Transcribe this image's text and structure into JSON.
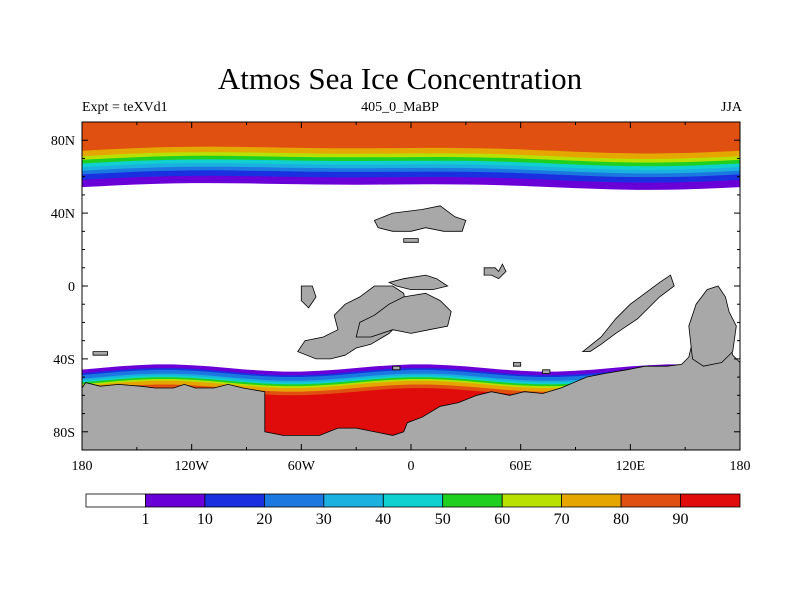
{
  "chart_data": {
    "type": "heatmap",
    "title": "Atmos Sea Ice Concentration",
    "subtitle_left": "Expt = teXVd1",
    "subtitle_center": "405_0_MaBP",
    "subtitle_right": "JJA",
    "projection": "cylindrical equidistant",
    "xlim": [
      -180,
      180
    ],
    "ylim": [
      -90,
      90
    ],
    "x_ticks": [
      {
        "value": -180,
        "label": "180"
      },
      {
        "value": -120,
        "label": "120W"
      },
      {
        "value": -60,
        "label": "60W"
      },
      {
        "value": 0,
        "label": "0"
      },
      {
        "value": 60,
        "label": "60E"
      },
      {
        "value": 120,
        "label": "120E"
      },
      {
        "value": 180,
        "label": "180"
      }
    ],
    "y_ticks": [
      {
        "value": 80,
        "label": "80N"
      },
      {
        "value": 40,
        "label": "40N"
      },
      {
        "value": 0,
        "label": "0"
      },
      {
        "value": -40,
        "label": "40S"
      },
      {
        "value": -80,
        "label": "80S"
      }
    ],
    "levels": [
      1,
      10,
      20,
      30,
      40,
      50,
      60,
      70,
      80,
      90
    ],
    "level_labels": [
      "1",
      "10",
      "20",
      "30",
      "40",
      "50",
      "60",
      "70",
      "80",
      "90"
    ],
    "colors": [
      "#ffffff",
      "#6a00d8",
      "#1a2fe0",
      "#1a78e0",
      "#1ab0e0",
      "#10d0d0",
      "#20d020",
      "#b8e000",
      "#e6a600",
      "#e05010",
      "#e00c0c"
    ],
    "land_color": "#a8a8a8",
    "north_bands": [
      {
        "level": 1,
        "lat_edge": 55
      },
      {
        "level": 10,
        "lat_edge": 59
      },
      {
        "level": 20,
        "lat_edge": 62
      },
      {
        "level": 30,
        "lat_edge": 64
      },
      {
        "level": 40,
        "lat_edge": 66
      },
      {
        "level": 50,
        "lat_edge": 68
      },
      {
        "level": 60,
        "lat_edge": 70
      },
      {
        "level": 70,
        "lat_edge": 72
      },
      {
        "level": 80,
        "lat_edge": 75
      }
    ],
    "south_bands": [
      {
        "level": 1,
        "lat_edge": -45
      },
      {
        "level": 10,
        "lat_edge": -47
      },
      {
        "level": 20,
        "lat_edge": -48
      },
      {
        "level": 30,
        "lat_edge": -50
      },
      {
        "level": 40,
        "lat_edge": -51
      },
      {
        "level": 50,
        "lat_edge": -52
      },
      {
        "level": 60,
        "lat_edge": -53
      },
      {
        "level": 70,
        "lat_edge": -54
      },
      {
        "level": 80,
        "lat_edge": -56
      },
      {
        "level": 90,
        "lat_edge": -58
      }
    ],
    "land_polygons": [
      [
        [
          -180,
          -56
        ],
        [
          -178,
          -53
        ],
        [
          -170,
          -55
        ],
        [
          -160,
          -54
        ],
        [
          -148,
          -55
        ],
        [
          -140,
          -56
        ],
        [
          -130,
          -56
        ],
        [
          -124,
          -54
        ],
        [
          -118,
          -56
        ],
        [
          -108,
          -56
        ],
        [
          -100,
          -54
        ],
        [
          -92,
          -56
        ],
        [
          -86,
          -57
        ],
        [
          -80,
          -58
        ],
        [
          -80,
          -80
        ],
        [
          -70,
          -82
        ],
        [
          -50,
          -82
        ],
        [
          -40,
          -78
        ],
        [
          -30,
          -78
        ],
        [
          -10,
          -82
        ],
        [
          -4,
          -80
        ],
        [
          -2,
          -75
        ],
        [
          6,
          -72
        ],
        [
          16,
          -66
        ],
        [
          26,
          -64
        ],
        [
          36,
          -60
        ],
        [
          44,
          -58
        ],
        [
          54,
          -60
        ],
        [
          62,
          -58
        ],
        [
          72,
          -59
        ],
        [
          82,
          -56
        ],
        [
          96,
          -50
        ],
        [
          106,
          -48
        ],
        [
          118,
          -46
        ],
        [
          128,
          -44
        ],
        [
          140,
          -44
        ],
        [
          148,
          -43
        ],
        [
          152,
          -39
        ],
        [
          156,
          -22
        ],
        [
          166,
          -16
        ],
        [
          170,
          -12
        ],
        [
          174,
          -28
        ],
        [
          176,
          -38
        ],
        [
          180,
          -42
        ],
        [
          180,
          -90
        ],
        [
          -180,
          -90
        ]
      ],
      [
        [
          154,
          -40
        ],
        [
          152,
          -22
        ],
        [
          156,
          -10
        ],
        [
          162,
          -2
        ],
        [
          168,
          0
        ],
        [
          172,
          -6
        ],
        [
          174,
          -14
        ],
        [
          178,
          -22
        ],
        [
          176,
          -36
        ],
        [
          170,
          -42
        ],
        [
          160,
          -44
        ]
      ],
      [
        [
          94,
          -36
        ],
        [
          104,
          -28
        ],
        [
          112,
          -18
        ],
        [
          120,
          -10
        ],
        [
          128,
          -4
        ],
        [
          136,
          2
        ],
        [
          142,
          6
        ],
        [
          144,
          0
        ],
        [
          136,
          -6
        ],
        [
          130,
          -12
        ],
        [
          124,
          -18
        ],
        [
          118,
          -22
        ],
        [
          112,
          -26
        ],
        [
          104,
          -32
        ],
        [
          98,
          -36
        ]
      ],
      [
        [
          -36,
          -38
        ],
        [
          -30,
          -34
        ],
        [
          -22,
          -32
        ],
        [
          -12,
          -26
        ],
        [
          -6,
          -20
        ],
        [
          -2,
          -14
        ],
        [
          -4,
          -4
        ],
        [
          -10,
          0
        ],
        [
          -20,
          0
        ],
        [
          -28,
          -6
        ],
        [
          -36,
          -10
        ],
        [
          -42,
          -16
        ],
        [
          -40,
          -24
        ],
        [
          -48,
          -28
        ],
        [
          -58,
          -30
        ],
        [
          -62,
          -36
        ],
        [
          -52,
          -40
        ],
        [
          -44,
          -40
        ]
      ],
      [
        [
          -28,
          -20
        ],
        [
          -20,
          -16
        ],
        [
          -12,
          -10
        ],
        [
          -4,
          -6
        ],
        [
          8,
          -4
        ],
        [
          16,
          -8
        ],
        [
          22,
          -14
        ],
        [
          20,
          -22
        ],
        [
          10,
          -24
        ],
        [
          0,
          -26
        ],
        [
          -10,
          -24
        ],
        [
          -22,
          -28
        ],
        [
          -30,
          -28
        ]
      ],
      [
        [
          -12,
          2
        ],
        [
          -4,
          4
        ],
        [
          8,
          6
        ],
        [
          14,
          4
        ],
        [
          20,
          0
        ],
        [
          12,
          -2
        ],
        [
          0,
          -2
        ],
        [
          -8,
          0
        ]
      ],
      [
        [
          -20,
          36
        ],
        [
          -10,
          40
        ],
        [
          6,
          42
        ],
        [
          16,
          44
        ],
        [
          24,
          38
        ],
        [
          30,
          36
        ],
        [
          28,
          30
        ],
        [
          18,
          30
        ],
        [
          8,
          32
        ],
        [
          0,
          30
        ],
        [
          -10,
          30
        ],
        [
          -18,
          32
        ]
      ],
      [
        [
          -4,
          24
        ],
        [
          4,
          24
        ],
        [
          4,
          26
        ],
        [
          -4,
          26
        ]
      ],
      [
        [
          40,
          10
        ],
        [
          46,
          10
        ],
        [
          48,
          8
        ],
        [
          50,
          12
        ],
        [
          52,
          8
        ],
        [
          48,
          4
        ],
        [
          44,
          6
        ],
        [
          40,
          6
        ]
      ],
      [
        [
          -60,
          0
        ],
        [
          -54,
          0
        ],
        [
          -52,
          -6
        ],
        [
          -56,
          -12
        ],
        [
          -60,
          -8
        ]
      ],
      [
        [
          -174,
          -36
        ],
        [
          -166,
          -36
        ],
        [
          -166,
          -38
        ],
        [
          -174,
          -38
        ]
      ],
      [
        [
          -10,
          -44
        ],
        [
          -6,
          -44
        ],
        [
          -6,
          -46
        ],
        [
          -10,
          -46
        ]
      ],
      [
        [
          56,
          -42
        ],
        [
          60,
          -42
        ],
        [
          60,
          -44
        ],
        [
          56,
          -44
        ]
      ],
      [
        [
          72,
          -46
        ],
        [
          76,
          -46
        ],
        [
          76,
          -48
        ],
        [
          72,
          -48
        ]
      ]
    ]
  }
}
